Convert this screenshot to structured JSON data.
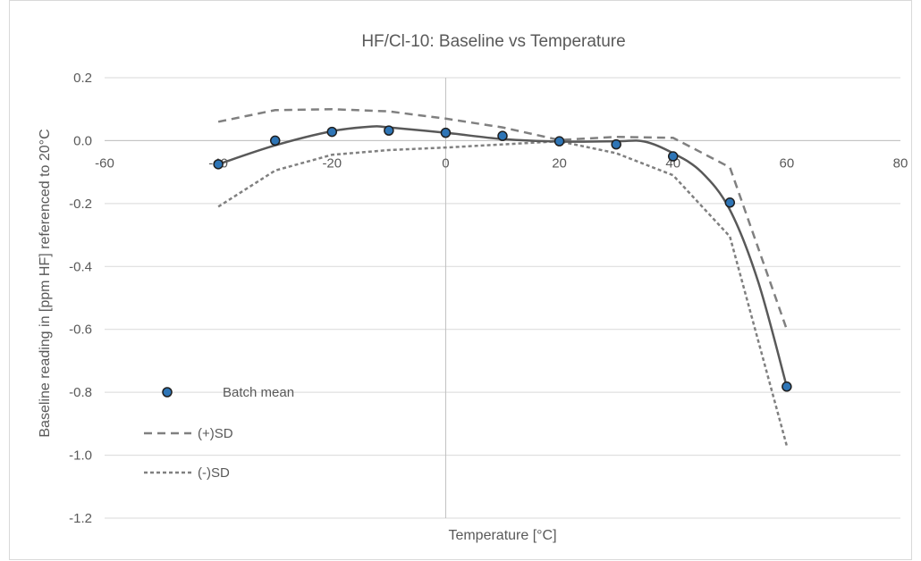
{
  "chart_data": {
    "type": "scatter",
    "title": "HF/Cl-10: Baseline vs Temperature",
    "xlabel": "Temperature [°C]",
    "ylabel": "Baseline reading in [ppm HF] referenced to 20°C",
    "xlim": [
      -60,
      80
    ],
    "ylim": [
      -1.2,
      0.2
    ],
    "xticks": [
      -60,
      -40,
      -20,
      0,
      20,
      40,
      60,
      80
    ],
    "xtick_labels": [
      "-60",
      "-40",
      "-20",
      "0",
      "20",
      "40",
      "60",
      "80"
    ],
    "yticks": [
      0.2,
      0.0,
      -0.2,
      -0.4,
      -0.6,
      -0.8,
      -1.0,
      -1.2
    ],
    "ytick_labels": [
      "0.2",
      "0.0",
      "-0.2",
      "-0.4",
      "-0.6",
      "-0.8",
      "-1.0",
      "-1.2"
    ],
    "grid": "horizontal",
    "legend_position": "left",
    "series": [
      {
        "name": "Batch mean",
        "style": "markers",
        "color": "#2e75b6",
        "edge_color": "#1f1f1f",
        "x": [
          -40,
          -30,
          -20,
          -10,
          0,
          10,
          20,
          30,
          40,
          50,
          60
        ],
        "y": [
          -0.075,
          0.0,
          0.028,
          0.032,
          0.025,
          0.015,
          -0.002,
          -0.012,
          -0.05,
          -0.197,
          -0.782
        ]
      },
      {
        "name": "(+)SD",
        "style": "dashed",
        "color": "#808080",
        "x": [
          -40,
          -30,
          -20,
          -10,
          0,
          10,
          20,
          30,
          40,
          50,
          60
        ],
        "y": [
          0.06,
          0.097,
          0.1,
          0.093,
          0.07,
          0.042,
          0.002,
          0.012,
          0.009,
          -0.085,
          -0.6
        ]
      },
      {
        "name": "(-)SD",
        "style": "short-dashed",
        "color": "#808080",
        "x": [
          -40,
          -30,
          -20,
          -10,
          0,
          10,
          20,
          30,
          40,
          50,
          60
        ],
        "y": [
          -0.21,
          -0.095,
          -0.045,
          -0.03,
          -0.022,
          -0.012,
          -0.002,
          -0.04,
          -0.11,
          -0.305,
          -0.97
        ]
      },
      {
        "name": "",
        "style": "trendline",
        "color": "#595959",
        "x": [
          -40,
          -30,
          -20,
          -13,
          -10,
          0,
          10,
          20,
          30,
          35,
          40,
          45,
          50,
          55,
          60
        ],
        "y": [
          -0.075,
          -0.015,
          0.03,
          0.045,
          0.042,
          0.025,
          0.005,
          -0.003,
          -0.002,
          -0.003,
          -0.04,
          -0.1,
          -0.22,
          -0.45,
          -0.782
        ]
      }
    ]
  }
}
